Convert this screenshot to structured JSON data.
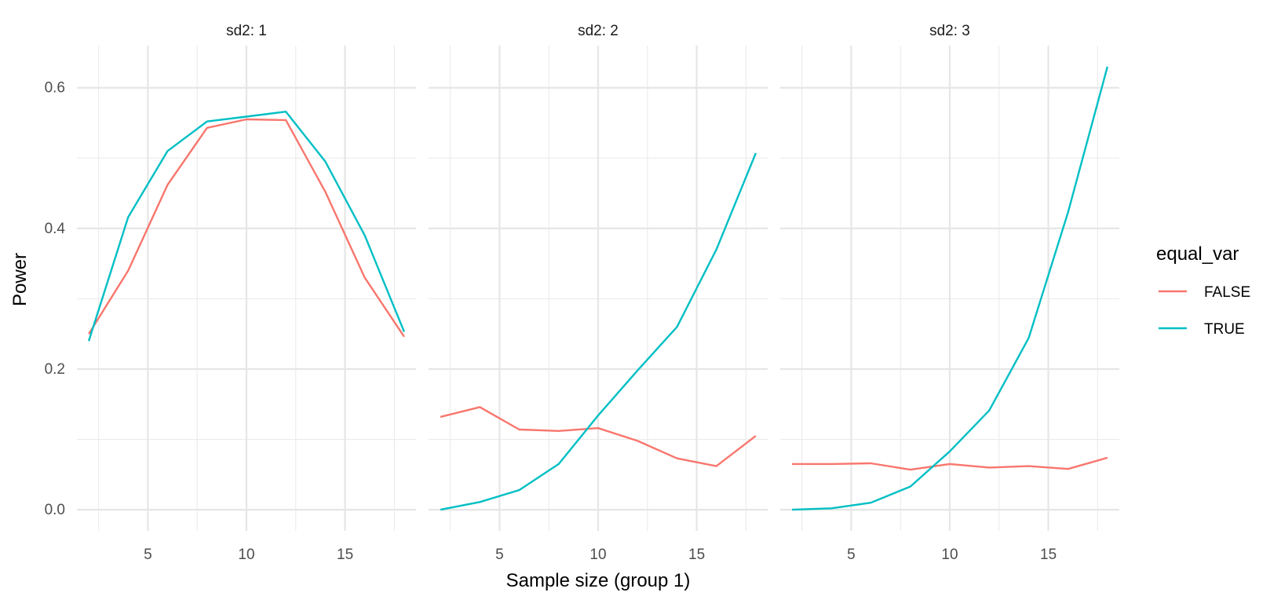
{
  "chart_data": {
    "type": "line",
    "xlabel": "Sample size (group 1)",
    "ylabel": "Power",
    "xlim": [
      1.4,
      18.6
    ],
    "ylim": [
      -0.03,
      0.66
    ],
    "x_ticks": [
      5,
      10,
      15
    ],
    "x_tick_labels": [
      "5",
      "10",
      "15"
    ],
    "y_ticks": [
      0.0,
      0.2,
      0.4,
      0.6
    ],
    "y_tick_labels": [
      "0.0",
      "0.2",
      "0.4",
      "0.6"
    ],
    "grid": true,
    "legend": {
      "title": "equal_var",
      "position": "right",
      "entries": [
        {
          "label": "FALSE",
          "color": "#F8766D"
        },
        {
          "label": "TRUE",
          "color": "#00BFC4"
        }
      ]
    },
    "facets": [
      {
        "label": "sd2: 1",
        "series": [
          {
            "name": "FALSE",
            "color": "#F8766D",
            "x": [
              2,
              4,
              6,
              8,
              10,
              12,
              14,
              16,
              18
            ],
            "values": [
              0.25,
              0.34,
              0.462,
              0.543,
              0.555,
              0.554,
              0.452,
              0.33,
              0.246
            ]
          },
          {
            "name": "TRUE",
            "color": "#00BFC4",
            "x": [
              2,
              4,
              6,
              8,
              10,
              12,
              14,
              16,
              18
            ],
            "values": [
              0.24,
              0.416,
              0.51,
              0.552,
              0.559,
              0.566,
              0.495,
              0.39,
              0.253
            ]
          }
        ]
      },
      {
        "label": "sd2: 2",
        "series": [
          {
            "name": "FALSE",
            "color": "#F8766D",
            "x": [
              2,
              4,
              6,
              8,
              10,
              12,
              14,
              16,
              18
            ],
            "values": [
              0.132,
              0.146,
              0.114,
              0.112,
              0.116,
              0.098,
              0.073,
              0.062,
              0.105
            ]
          },
          {
            "name": "TRUE",
            "color": "#00BFC4",
            "x": [
              2,
              4,
              6,
              8,
              10,
              12,
              14,
              16,
              18
            ],
            "values": [
              0.0,
              0.011,
              0.028,
              0.065,
              0.134,
              0.198,
              0.26,
              0.37,
              0.507
            ]
          }
        ]
      },
      {
        "label": "sd2: 3",
        "series": [
          {
            "name": "FALSE",
            "color": "#F8766D",
            "x": [
              2,
              4,
              6,
              8,
              10,
              12,
              14,
              16,
              18
            ],
            "values": [
              0.065,
              0.065,
              0.066,
              0.057,
              0.065,
              0.06,
              0.062,
              0.058,
              0.074
            ]
          },
          {
            "name": "TRUE",
            "color": "#00BFC4",
            "x": [
              2,
              4,
              6,
              8,
              10,
              12,
              14,
              16,
              18
            ],
            "values": [
              0.0,
              0.002,
              0.01,
              0.033,
              0.083,
              0.141,
              0.244,
              0.423,
              0.63
            ]
          }
        ]
      }
    ]
  }
}
